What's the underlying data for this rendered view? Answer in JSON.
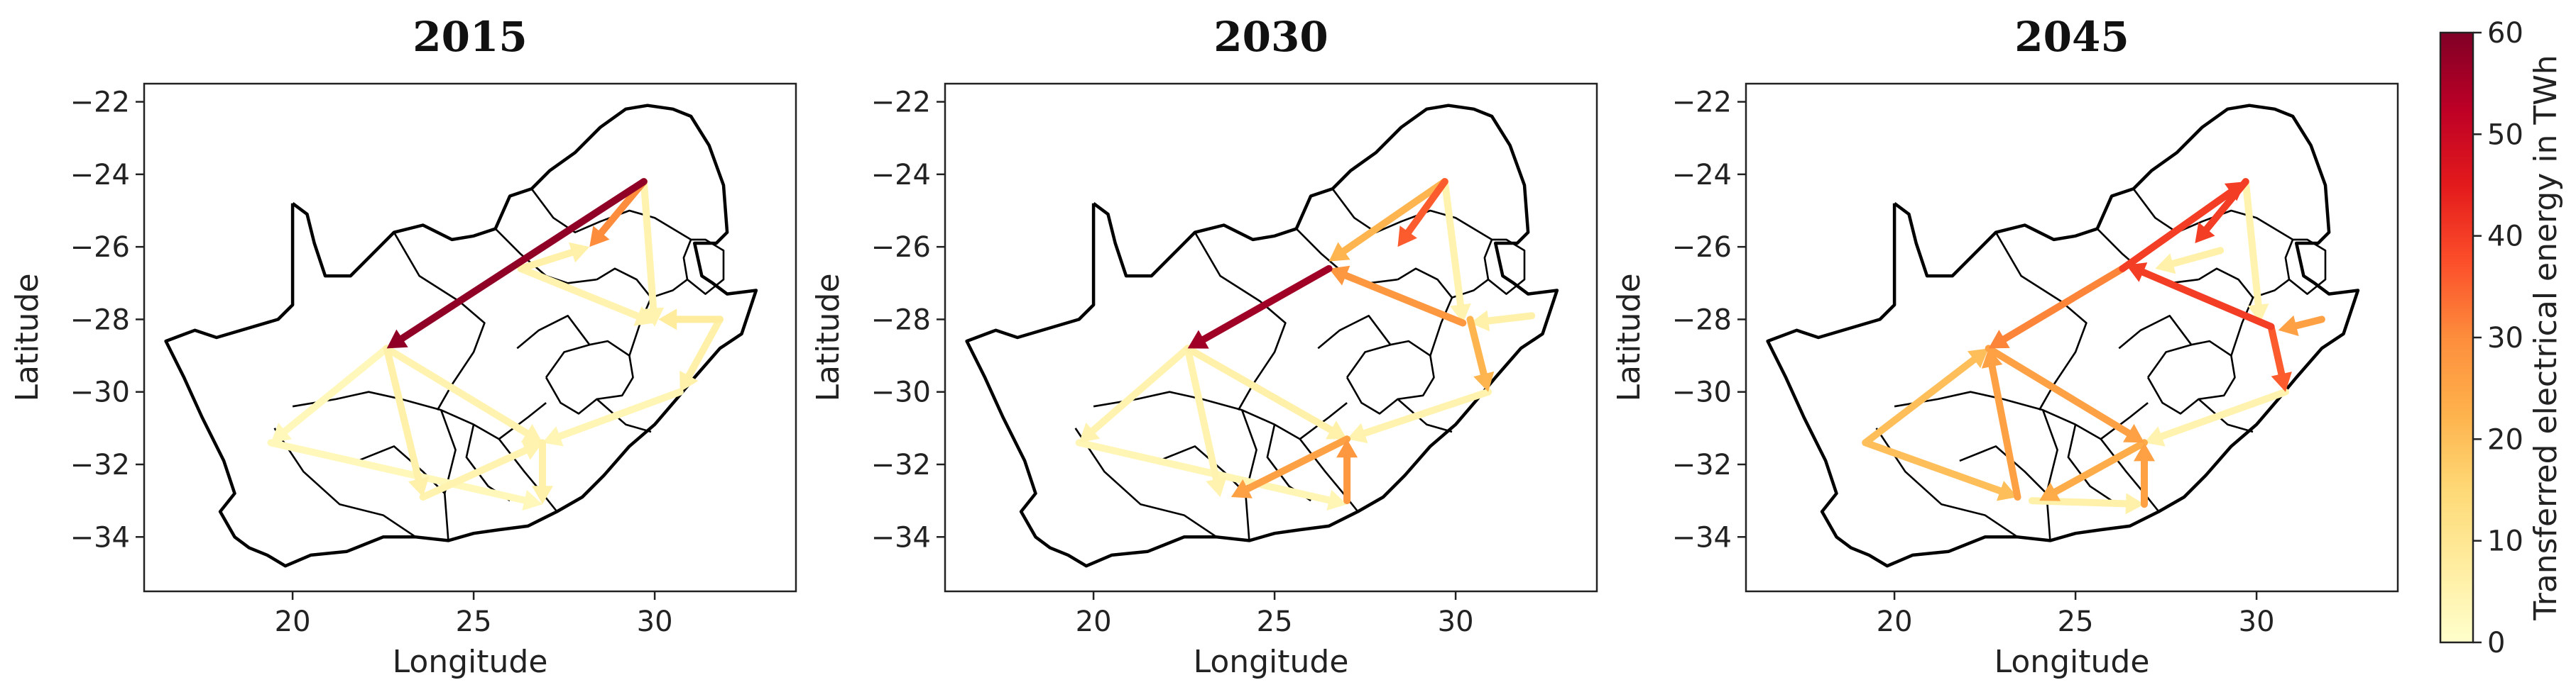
{
  "colorbar": {
    "label": "Transferred electrical energy in TWh",
    "min": 0,
    "max": 60,
    "ticks": [
      "0",
      "10",
      "20",
      "30",
      "40",
      "50",
      "60"
    ],
    "colormap": [
      "#ffffcc",
      "#ffeda0",
      "#fed976",
      "#feb24c",
      "#fd8d3c",
      "#fc4e2a",
      "#e31a1c",
      "#bd0026",
      "#800026"
    ]
  },
  "axes": {
    "xlabel": "Longitude",
    "ylabel": "Latitude",
    "xlim": [
      15.9,
      33.9
    ],
    "ylim": [
      -35.5,
      -21.5
    ],
    "xticks": [
      "20",
      "25",
      "30"
    ],
    "yticks": [
      "−22",
      "−24",
      "−26",
      "−28",
      "−30",
      "−32",
      "−34"
    ]
  },
  "chart_data": [
    {
      "type": "map-flow",
      "title": "2015",
      "flows": [
        {
          "from": [
            29.7,
            -24.2
          ],
          "to": [
            22.6,
            -28.8
          ],
          "value": 58
        },
        {
          "from": [
            29.7,
            -24.2
          ],
          "to": [
            28.2,
            -26.0
          ],
          "value": 30
        },
        {
          "from": [
            29.7,
            -24.2
          ],
          "to": [
            30.0,
            -28.2
          ],
          "value": 5
        },
        {
          "from": [
            26.3,
            -26.6
          ],
          "to": [
            28.2,
            -26.0
          ],
          "value": 6
        },
        {
          "from": [
            26.3,
            -26.6
          ],
          "to": [
            30.0,
            -28.1
          ],
          "value": 5
        },
        {
          "from": [
            31.8,
            -28.0
          ],
          "to": [
            30.1,
            -28.0
          ],
          "value": 8
        },
        {
          "from": [
            31.8,
            -28.0
          ],
          "to": [
            30.7,
            -30.0
          ],
          "value": 6
        },
        {
          "from": [
            22.6,
            -28.8
          ],
          "to": [
            19.4,
            -31.4
          ],
          "value": 3
        },
        {
          "from": [
            22.6,
            -28.8
          ],
          "to": [
            23.6,
            -32.9
          ],
          "value": 6
        },
        {
          "from": [
            22.6,
            -28.8
          ],
          "to": [
            26.9,
            -31.4
          ],
          "value": 5
        },
        {
          "from": [
            19.4,
            -31.4
          ],
          "to": [
            26.9,
            -33.1
          ],
          "value": 3
        },
        {
          "from": [
            23.6,
            -32.9
          ],
          "to": [
            26.9,
            -31.4
          ],
          "value": 5
        },
        {
          "from": [
            26.9,
            -31.4
          ],
          "to": [
            26.9,
            -33.1
          ],
          "value": 6
        },
        {
          "from": [
            30.7,
            -30.0
          ],
          "to": [
            26.9,
            -31.4
          ],
          "value": 4
        }
      ]
    },
    {
      "type": "map-flow",
      "title": "2030",
      "flows": [
        {
          "from": [
            26.5,
            -26.6
          ],
          "to": [
            22.6,
            -28.8
          ],
          "value": 56
        },
        {
          "from": [
            29.7,
            -24.2
          ],
          "to": [
            26.5,
            -26.4
          ],
          "value": 22
        },
        {
          "from": [
            29.7,
            -24.2
          ],
          "to": [
            28.4,
            -26.0
          ],
          "value": 36
        },
        {
          "from": [
            29.7,
            -24.2
          ],
          "to": [
            30.2,
            -28.1
          ],
          "value": 5
        },
        {
          "from": [
            30.2,
            -28.1
          ],
          "to": [
            26.5,
            -26.6
          ],
          "value": 28
        },
        {
          "from": [
            30.4,
            -28.0
          ],
          "to": [
            30.9,
            -30.0
          ],
          "value": 22
        },
        {
          "from": [
            32.1,
            -27.9
          ],
          "to": [
            30.4,
            -28.1
          ],
          "value": 6
        },
        {
          "from": [
            22.6,
            -28.8
          ],
          "to": [
            19.6,
            -31.4
          ],
          "value": 5
        },
        {
          "from": [
            22.6,
            -28.8
          ],
          "to": [
            23.5,
            -32.9
          ],
          "value": 5
        },
        {
          "from": [
            22.6,
            -28.8
          ],
          "to": [
            27.0,
            -31.3
          ],
          "value": 6
        },
        {
          "from": [
            27.0,
            -33.0
          ],
          "to": [
            27.0,
            -31.3
          ],
          "value": 28
        },
        {
          "from": [
            27.0,
            -31.3
          ],
          "to": [
            23.8,
            -32.9
          ],
          "value": 26
        },
        {
          "from": [
            30.9,
            -30.0
          ],
          "to": [
            27.0,
            -31.3
          ],
          "value": 5
        },
        {
          "from": [
            19.6,
            -31.4
          ],
          "to": [
            27.0,
            -33.1
          ],
          "value": 4
        }
      ]
    },
    {
      "type": "map-flow",
      "title": "2045",
      "flows": [
        {
          "from": [
            26.3,
            -26.6
          ],
          "to": [
            22.6,
            -28.8
          ],
          "value": 31
        },
        {
          "from": [
            26.3,
            -26.6
          ],
          "to": [
            29.7,
            -24.2
          ],
          "value": 40
        },
        {
          "from": [
            29.7,
            -24.2
          ],
          "to": [
            28.3,
            -25.9
          ],
          "value": 40
        },
        {
          "from": [
            29.7,
            -24.2
          ],
          "to": [
            30.1,
            -28.1
          ],
          "value": 5
        },
        {
          "from": [
            30.4,
            -28.2
          ],
          "to": [
            26.4,
            -26.5
          ],
          "value": 40
        },
        {
          "from": [
            30.4,
            -28.2
          ],
          "to": [
            30.8,
            -30.0
          ],
          "value": 36
        },
        {
          "from": [
            31.8,
            -28.0
          ],
          "to": [
            30.6,
            -28.3
          ],
          "value": 26
        },
        {
          "from": [
            29.0,
            -26.1
          ],
          "to": [
            27.2,
            -26.6
          ],
          "value": 6
        },
        {
          "from": [
            19.2,
            -31.4
          ],
          "to": [
            22.6,
            -28.8
          ],
          "value": 20
        },
        {
          "from": [
            22.6,
            -28.8
          ],
          "to": [
            26.9,
            -31.4
          ],
          "value": 26
        },
        {
          "from": [
            23.4,
            -32.9
          ],
          "to": [
            22.6,
            -28.8
          ],
          "value": 26
        },
        {
          "from": [
            19.2,
            -31.4
          ],
          "to": [
            23.4,
            -32.9
          ],
          "value": 20
        },
        {
          "from": [
            26.9,
            -31.4
          ],
          "to": [
            24.0,
            -33.0
          ],
          "value": 24
        },
        {
          "from": [
            26.9,
            -33.1
          ],
          "to": [
            26.9,
            -31.4
          ],
          "value": 26
        },
        {
          "from": [
            30.8,
            -30.0
          ],
          "to": [
            26.9,
            -31.4
          ],
          "value": 5
        },
        {
          "from": [
            23.8,
            -33.0
          ],
          "to": [
            26.9,
            -33.1
          ],
          "value": 6
        }
      ]
    }
  ]
}
